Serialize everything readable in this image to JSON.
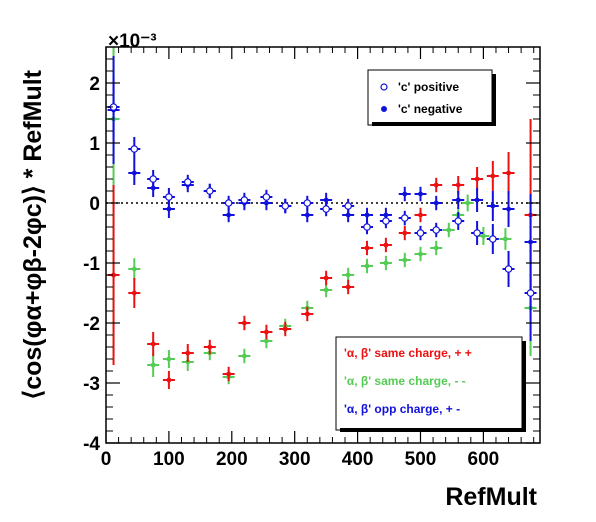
{
  "chart_data": {
    "type": "scatter",
    "xlabel": "RefMult",
    "ylabel": "⟨cos(φα+φβ-2φc)⟩ * RefMult",
    "y_multiplier": "×10⁻³",
    "xlim": [
      0,
      690
    ],
    "ylim": [
      -4.0,
      2.6
    ],
    "x_ticks": [
      0,
      100,
      200,
      300,
      400,
      500,
      600
    ],
    "y_ticks": [
      -4,
      -3,
      -2,
      -1,
      0,
      1,
      2
    ],
    "reference_line_y": 0,
    "legends": {
      "top_right": [
        "'c' positive",
        "'c' negative"
      ],
      "bottom_right": [
        "'α, β'  same charge, + +",
        "'α, β'  same charge, - -",
        "'α, β'  opp charge, + -"
      ]
    },
    "series": [
      {
        "name": "'α, β'  same charge, - -",
        "color": "#55cc55",
        "marker": "filled",
        "points": [
          [
            12,
            1.4,
            3.9
          ],
          [
            45,
            -1.1,
            0.18
          ],
          [
            75,
            -2.7,
            0.2
          ],
          [
            100,
            -2.6,
            0.15
          ],
          [
            130,
            -2.65,
            0.15
          ],
          [
            165,
            -2.5,
            0.12
          ],
          [
            195,
            -2.9,
            0.12
          ],
          [
            220,
            -2.55,
            0.12
          ],
          [
            255,
            -2.3,
            0.12
          ],
          [
            285,
            -2.05,
            0.12
          ],
          [
            320,
            -1.75,
            0.12
          ],
          [
            350,
            -1.45,
            0.12
          ],
          [
            385,
            -1.2,
            0.12
          ],
          [
            415,
            -1.05,
            0.12
          ],
          [
            445,
            -1.0,
            0.12
          ],
          [
            475,
            -0.95,
            0.12
          ],
          [
            500,
            -0.85,
            0.12
          ],
          [
            525,
            -0.75,
            0.12
          ],
          [
            545,
            -0.45,
            0.12
          ],
          [
            560,
            -0.2,
            0.12
          ],
          [
            575,
            0.0,
            0.14
          ],
          [
            600,
            -0.55,
            0.15
          ],
          [
            635,
            -0.6,
            0.18
          ],
          [
            675,
            -1.75,
            0.8
          ]
        ]
      },
      {
        "name": "'α, β'  same charge, + +",
        "color": "#ee1111",
        "marker": "filled",
        "points": [
          [
            12,
            -1.2,
            1.5
          ],
          [
            45,
            -1.5,
            0.25
          ],
          [
            75,
            -2.35,
            0.2
          ],
          [
            100,
            -2.95,
            0.15
          ],
          [
            130,
            -2.5,
            0.15
          ],
          [
            165,
            -2.4,
            0.12
          ],
          [
            195,
            -2.85,
            0.12
          ],
          [
            220,
            -2.0,
            0.12
          ],
          [
            255,
            -2.15,
            0.12
          ],
          [
            285,
            -2.1,
            0.12
          ],
          [
            320,
            -1.85,
            0.12
          ],
          [
            350,
            -1.25,
            0.12
          ],
          [
            385,
            -1.4,
            0.12
          ],
          [
            415,
            -0.75,
            0.12
          ],
          [
            445,
            -0.7,
            0.12
          ],
          [
            475,
            -0.5,
            0.12
          ],
          [
            500,
            -0.2,
            0.12
          ],
          [
            525,
            0.3,
            0.12
          ],
          [
            560,
            0.3,
            0.15
          ],
          [
            590,
            0.4,
            0.2
          ],
          [
            615,
            0.45,
            0.25
          ],
          [
            640,
            0.5,
            0.35
          ],
          [
            675,
            -0.2,
            1.6
          ]
        ]
      },
      {
        "name": "'c' negative",
        "color": "#1111dd",
        "marker": "filled",
        "points": [
          [
            12,
            1.55,
            0.9
          ],
          [
            45,
            0.5,
            0.2
          ],
          [
            75,
            0.25,
            0.15
          ],
          [
            100,
            -0.1,
            0.15
          ],
          [
            130,
            0.3,
            0.12
          ],
          [
            165,
            0.2,
            0.12
          ],
          [
            195,
            -0.2,
            0.12
          ],
          [
            220,
            0.0,
            0.12
          ],
          [
            255,
            0.0,
            0.12
          ],
          [
            285,
            -0.05,
            0.12
          ],
          [
            320,
            -0.2,
            0.12
          ],
          [
            350,
            0.05,
            0.12
          ],
          [
            385,
            -0.2,
            0.12
          ],
          [
            415,
            -0.2,
            0.12
          ],
          [
            445,
            -0.2,
            0.12
          ],
          [
            475,
            0.15,
            0.12
          ],
          [
            500,
            0.15,
            0.12
          ],
          [
            525,
            0.0,
            0.12
          ],
          [
            560,
            0.05,
            0.15
          ],
          [
            590,
            0.05,
            0.2
          ],
          [
            615,
            -0.05,
            0.25
          ],
          [
            640,
            -0.1,
            0.3
          ],
          [
            675,
            -0.65,
            0.8
          ]
        ]
      },
      {
        "name": "'c' positive",
        "color": "#1111dd",
        "marker": "open",
        "points": [
          [
            12,
            1.6,
            0.5
          ],
          [
            45,
            0.9,
            0.2
          ],
          [
            75,
            0.4,
            0.15
          ],
          [
            100,
            0.1,
            0.15
          ],
          [
            130,
            0.35,
            0.12
          ],
          [
            165,
            0.2,
            0.12
          ],
          [
            195,
            0.0,
            0.12
          ],
          [
            220,
            0.05,
            0.12
          ],
          [
            255,
            0.1,
            0.12
          ],
          [
            285,
            -0.05,
            0.12
          ],
          [
            320,
            0.0,
            0.12
          ],
          [
            350,
            -0.1,
            0.12
          ],
          [
            385,
            -0.05,
            0.12
          ],
          [
            415,
            -0.4,
            0.12
          ],
          [
            445,
            -0.3,
            0.12
          ],
          [
            475,
            -0.25,
            0.12
          ],
          [
            500,
            -0.5,
            0.12
          ],
          [
            525,
            -0.45,
            0.12
          ],
          [
            560,
            -0.3,
            0.15
          ],
          [
            590,
            -0.5,
            0.2
          ],
          [
            615,
            -0.6,
            0.25
          ],
          [
            640,
            -1.1,
            0.3
          ],
          [
            675,
            -1.5,
            0.8
          ]
        ]
      }
    ]
  }
}
